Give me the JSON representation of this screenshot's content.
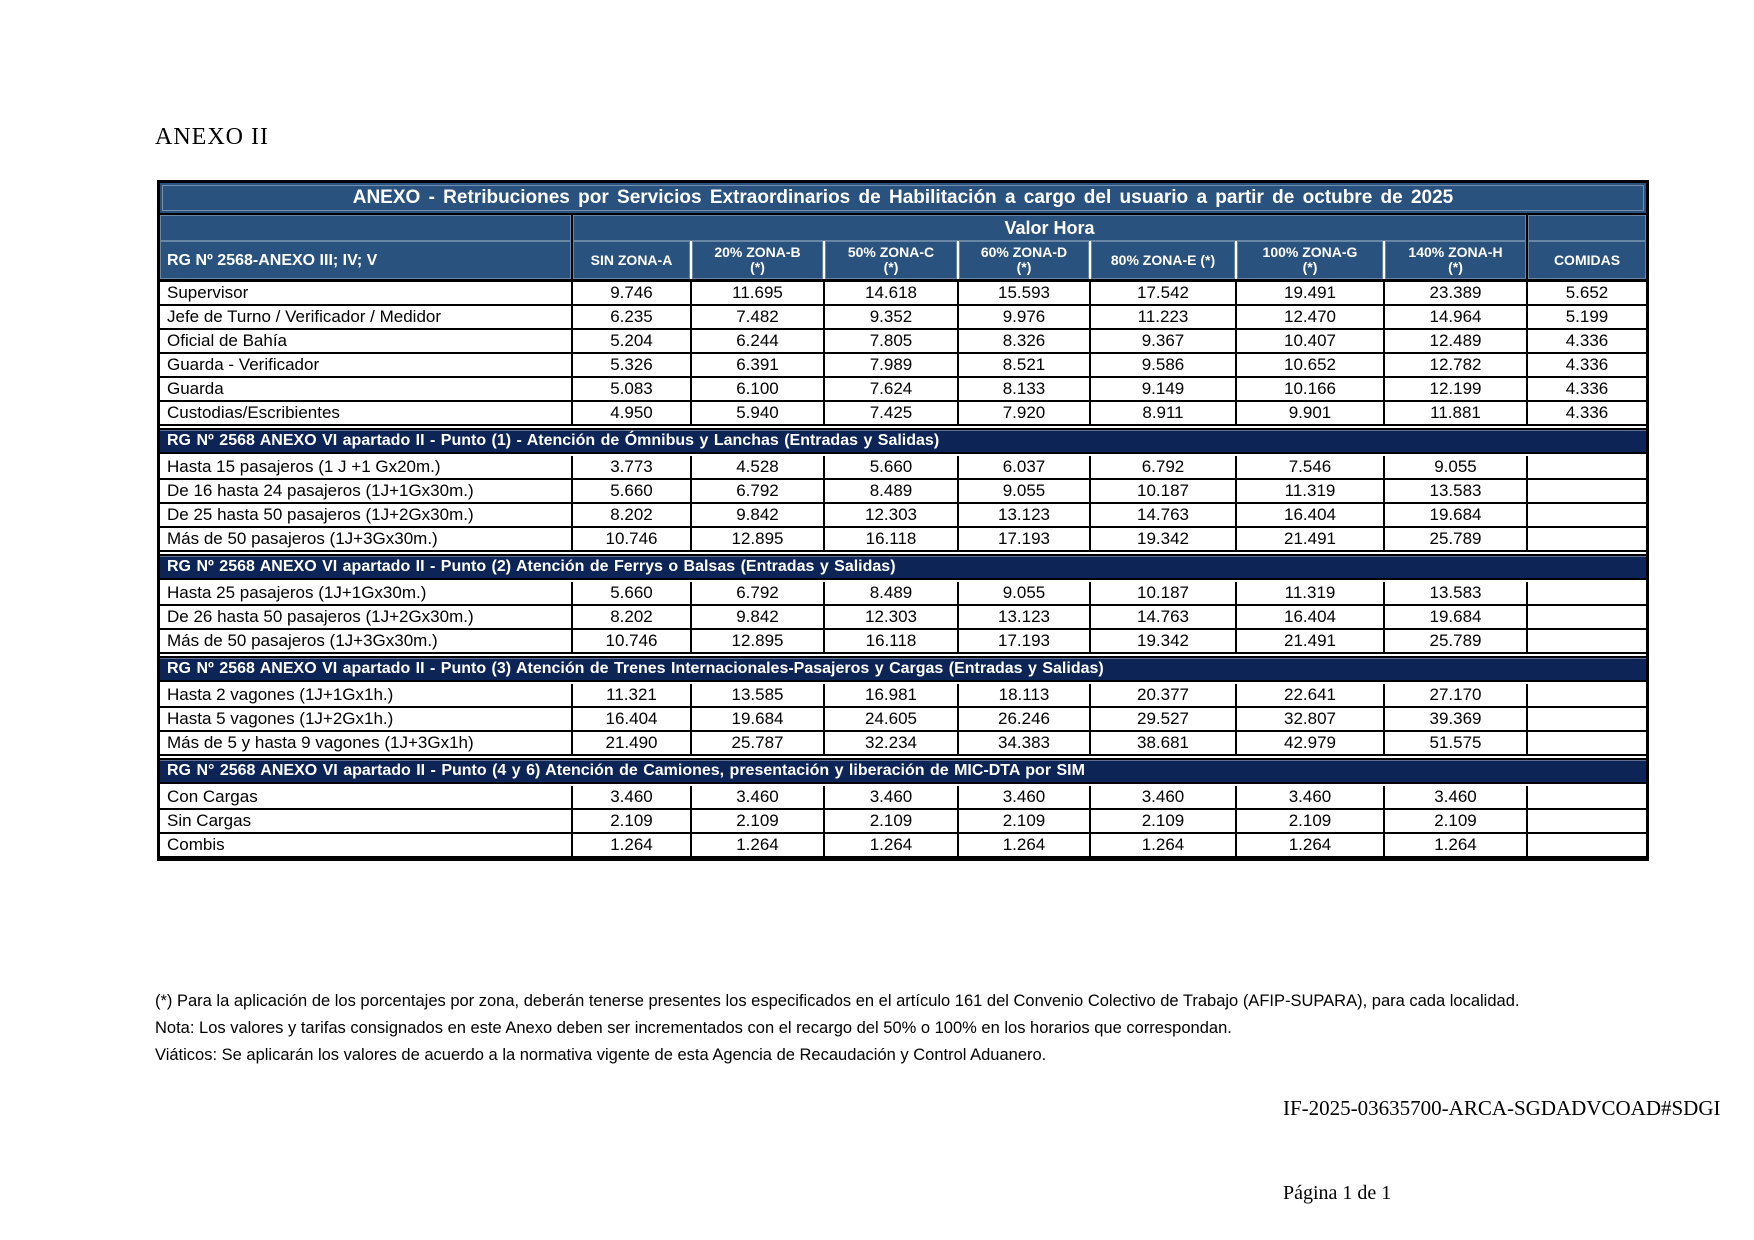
{
  "page": {
    "top_label": "ANEXO II",
    "doc_code": "IF-2025-03635700-ARCA-SGDADVCOAD#SDGI",
    "page_number": "Página 1 de 1"
  },
  "colors": {
    "header_blue": "#2A527E",
    "section_navy": "#0D2457",
    "border": "#000000"
  },
  "table": {
    "title": "ANEXO - Retribuciones por Servicios Extraordinarios de Habilitación a cargo del usuario a partir de octubre de 2025",
    "group_header": "Valor Hora",
    "row_header_label": "RG Nº 2568-ANEXO III; IV; V",
    "comidas_label": "COMIDAS",
    "columns": [
      {
        "label": "SIN ZONA-A",
        "note": ""
      },
      {
        "label": "20% ZONA-B",
        "note": "(*)"
      },
      {
        "label": "50% ZONA-C",
        "note": "(*)"
      },
      {
        "label": "60% ZONA-D",
        "note": "(*)"
      },
      {
        "label": "80% ZONA-E (*)",
        "note": ""
      },
      {
        "label": "100% ZONA-G",
        "note": "(*)"
      },
      {
        "label": "140% ZONA-H",
        "note": "(*)"
      }
    ],
    "sections": [
      {
        "header": "",
        "rows": [
          {
            "label": "Supervisor",
            "values": [
              "9.746",
              "11.695",
              "14.618",
              "15.593",
              "17.542",
              "19.491",
              "23.389"
            ],
            "comidas": "5.652"
          },
          {
            "label": "Jefe de Turno / Verificador / Medidor",
            "values": [
              "6.235",
              "7.482",
              "9.352",
              "9.976",
              "11.223",
              "12.470",
              "14.964"
            ],
            "comidas": "5.199"
          },
          {
            "label": "Oficial de Bahía",
            "values": [
              "5.204",
              "6.244",
              "7.805",
              "8.326",
              "9.367",
              "10.407",
              "12.489"
            ],
            "comidas": "4.336"
          },
          {
            "label": "Guarda - Verificador",
            "values": [
              "5.326",
              "6.391",
              "7.989",
              "8.521",
              "9.586",
              "10.652",
              "12.782"
            ],
            "comidas": "4.336"
          },
          {
            "label": "Guarda",
            "values": [
              "5.083",
              "6.100",
              "7.624",
              "8.133",
              "9.149",
              "10.166",
              "12.199"
            ],
            "comidas": "4.336"
          },
          {
            "label": "Custodias/Escribientes",
            "values": [
              "4.950",
              "5.940",
              "7.425",
              "7.920",
              "8.911",
              "9.901",
              "11.881"
            ],
            "comidas": "4.336"
          }
        ]
      },
      {
        "header": "RG Nº 2568 ANEXO VI apartado II - Punto (1) - Atención de Ómnibus y Lanchas (Entradas y Salidas)",
        "rows": [
          {
            "label": "Hasta 15 pasajeros (1 J +1 Gx20m.)",
            "values": [
              "3.773",
              "4.528",
              "5.660",
              "6.037",
              "6.792",
              "7.546",
              "9.055"
            ],
            "comidas": ""
          },
          {
            "label": "De 16 hasta 24 pasajeros (1J+1Gx30m.)",
            "values": [
              "5.660",
              "6.792",
              "8.489",
              "9.055",
              "10.187",
              "11.319",
              "13.583"
            ],
            "comidas": ""
          },
          {
            "label": "De 25 hasta 50 pasajeros (1J+2Gx30m.)",
            "values": [
              "8.202",
              "9.842",
              "12.303",
              "13.123",
              "14.763",
              "16.404",
              "19.684"
            ],
            "comidas": ""
          },
          {
            "label": "Más de 50 pasajeros (1J+3Gx30m.)",
            "values": [
              "10.746",
              "12.895",
              "16.118",
              "17.193",
              "19.342",
              "21.491",
              "25.789"
            ],
            "comidas": ""
          }
        ]
      },
      {
        "header": "RG Nº 2568 ANEXO VI apartado II - Punto (2) Atención de Ferrys o Balsas (Entradas y Salidas)",
        "rows": [
          {
            "label": "Hasta 25 pasajeros (1J+1Gx30m.)",
            "values": [
              "5.660",
              "6.792",
              "8.489",
              "9.055",
              "10.187",
              "11.319",
              "13.583"
            ],
            "comidas": ""
          },
          {
            "label": "De 26 hasta 50 pasajeros (1J+2Gx30m.)",
            "values": [
              "8.202",
              "9.842",
              "12.303",
              "13.123",
              "14.763",
              "16.404",
              "19.684"
            ],
            "comidas": ""
          },
          {
            "label": "Más de 50 pasajeros (1J+3Gx30m.)",
            "values": [
              "10.746",
              "12.895",
              "16.118",
              "17.193",
              "19.342",
              "21.491",
              "25.789"
            ],
            "comidas": ""
          }
        ]
      },
      {
        "header": "RG Nº 2568 ANEXO VI apartado II - Punto (3) Atención de Trenes Internacionales-Pasajeros y Cargas (Entradas y Salidas)",
        "rows": [
          {
            "label": "Hasta 2 vagones (1J+1Gx1h.)",
            "values": [
              "11.321",
              "13.585",
              "16.981",
              "18.113",
              "20.377",
              "22.641",
              "27.170"
            ],
            "comidas": ""
          },
          {
            "label": "Hasta 5 vagones (1J+2Gx1h.)",
            "values": [
              "16.404",
              "19.684",
              "24.605",
              "26.246",
              "29.527",
              "32.807",
              "39.369"
            ],
            "comidas": ""
          },
          {
            "label": "Más de 5 y hasta 9 vagones (1J+3Gx1h)",
            "values": [
              "21.490",
              "25.787",
              "32.234",
              "34.383",
              "38.681",
              "42.979",
              "51.575"
            ],
            "comidas": ""
          }
        ]
      },
      {
        "header": "RG N° 2568 ANEXO VI apartado II - Punto (4 y 6) Atención de Camiones, presentación y liberación de MIC-DTA por SIM",
        "rows": [
          {
            "label": "Con Cargas",
            "values": [
              "3.460",
              "3.460",
              "3.460",
              "3.460",
              "3.460",
              "3.460",
              "3.460"
            ],
            "comidas": ""
          },
          {
            "label": "Sin Cargas",
            "values": [
              "2.109",
              "2.109",
              "2.109",
              "2.109",
              "2.109",
              "2.109",
              "2.109"
            ],
            "comidas": ""
          },
          {
            "label": "Combis",
            "values": [
              "1.264",
              "1.264",
              "1.264",
              "1.264",
              "1.264",
              "1.264",
              "1.264"
            ],
            "comidas": ""
          }
        ]
      }
    ]
  },
  "footnotes": [
    "(*) Para la aplicación de los porcentajes por zona, deberán tenerse presentes los especificados en el artículo 161 del Convenio Colectivo de Trabajo (AFIP-SUPARA),  para cada localidad.",
    "Nota: Los valores y tarifas consignados en este Anexo deben ser incrementados con el recargo del 50% o 100% en los horarios que correspondan.",
    "Viáticos: Se aplicarán los valores de acuerdo a la normativa vigente de esta Agencia de Recaudación y Control Aduanero."
  ]
}
